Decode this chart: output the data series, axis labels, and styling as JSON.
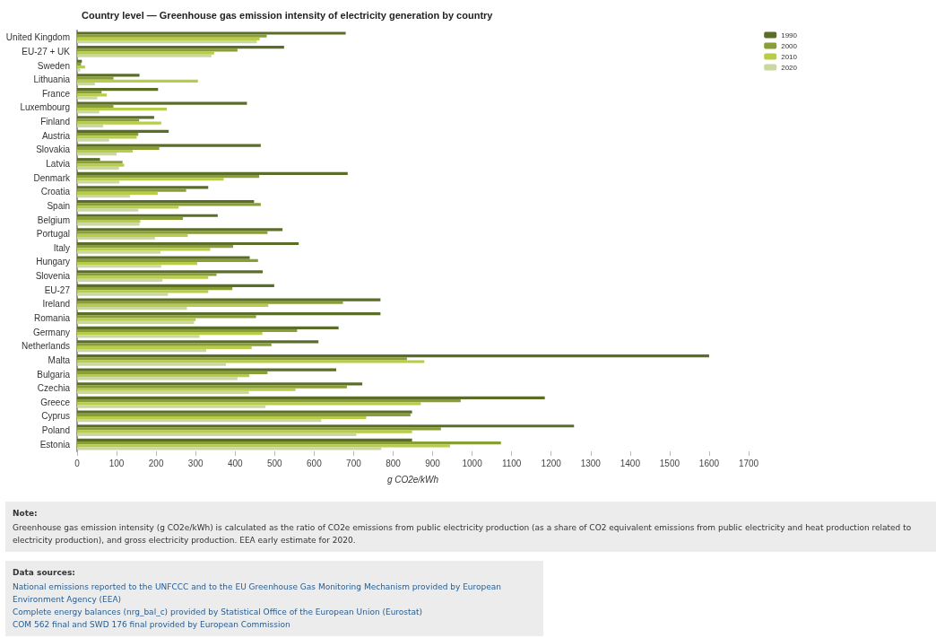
{
  "chart_data": {
    "type": "bar",
    "orientation": "horizontal",
    "title": "Country level — Greenhouse gas emission intensity of electricity generation by country",
    "xlabel": "g CO2e/kWh",
    "categories": [
      "United Kingdom",
      "EU-27 + UK",
      "Sweden",
      "Lithuania",
      "France",
      "Luxembourg",
      "Finland",
      "Austria",
      "Slovakia",
      "Latvia",
      "Denmark",
      "Croatia",
      "Spain",
      "Belgium",
      "Portugal",
      "Italy",
      "Hungary",
      "Slovenia",
      "EU-27",
      "Ireland",
      "Romania",
      "Germany",
      "Netherlands",
      "Malta",
      "Bulgaria",
      "Czechia",
      "Greece",
      "Cyprus",
      "Poland",
      "Estonia"
    ],
    "series": [
      {
        "name": "1990",
        "color": "#5a6e28",
        "values": [
          680,
          524,
          12,
          158,
          205,
          430,
          195,
          232,
          465,
          58,
          685,
          332,
          448,
          356,
          520,
          561,
          437,
          470,
          499,
          768,
          768,
          662,
          611,
          1600,
          656,
          722,
          1184,
          848,
          1258,
          848
        ]
      },
      {
        "name": "2000",
        "color": "#8a9e38",
        "values": [
          480,
          406,
          10,
          92,
          62,
          92,
          157,
          155,
          208,
          115,
          461,
          276,
          465,
          268,
          482,
          395,
          458,
          353,
          393,
          673,
          453,
          557,
          492,
          835,
          482,
          683,
          971,
          844,
          921,
          1073
        ]
      },
      {
        "name": "2010",
        "color": "#b8cc4a",
        "values": [
          462,
          347,
          20,
          306,
          75,
          227,
          213,
          151,
          141,
          119,
          371,
          204,
          257,
          160,
          280,
          337,
          304,
          332,
          332,
          484,
          300,
          469,
          442,
          879,
          436,
          553,
          870,
          732,
          848,
          944
        ]
      },
      {
        "name": "2020",
        "color": "#c8d8a0",
        "values": [
          455,
          340,
          8,
          45,
          51,
          56,
          66,
          81,
          100,
          106,
          107,
          134,
          155,
          158,
          197,
          211,
          213,
          216,
          230,
          278,
          296,
          310,
          327,
          377,
          406,
          435,
          477,
          618,
          707,
          770
        ]
      }
    ],
    "xlim": [
      0,
      1700
    ],
    "xticks": [
      0,
      100,
      200,
      300,
      400,
      500,
      600,
      700,
      800,
      900,
      1000,
      1100,
      1200,
      1300,
      1400,
      1500,
      1600,
      1700
    ],
    "grid": false,
    "legend": "top right",
    "annotations": [
      "Note:",
      "Greenhouse gas emission intensity (g CO2e/kWh) is calculated as the ratio of CO2e emissions from public electricity production (as a share of CO2 equivalent emissions from public electricity and heat production related to electricity production), and gross electricity production. EEA early estimate for 2020.",
      "Data sources:",
      "National emissions reported to the UNFCCC and to the EU Greenhouse Gas Monitoring Mechanism provided by European Environment Agency (EEA)",
      "Complete energy balances (nrg_bal_c) provided by Statistical Office of the European Union (Eurostat)",
      "COM 562 final and SWD 176 final provided by European Commission"
    ]
  }
}
